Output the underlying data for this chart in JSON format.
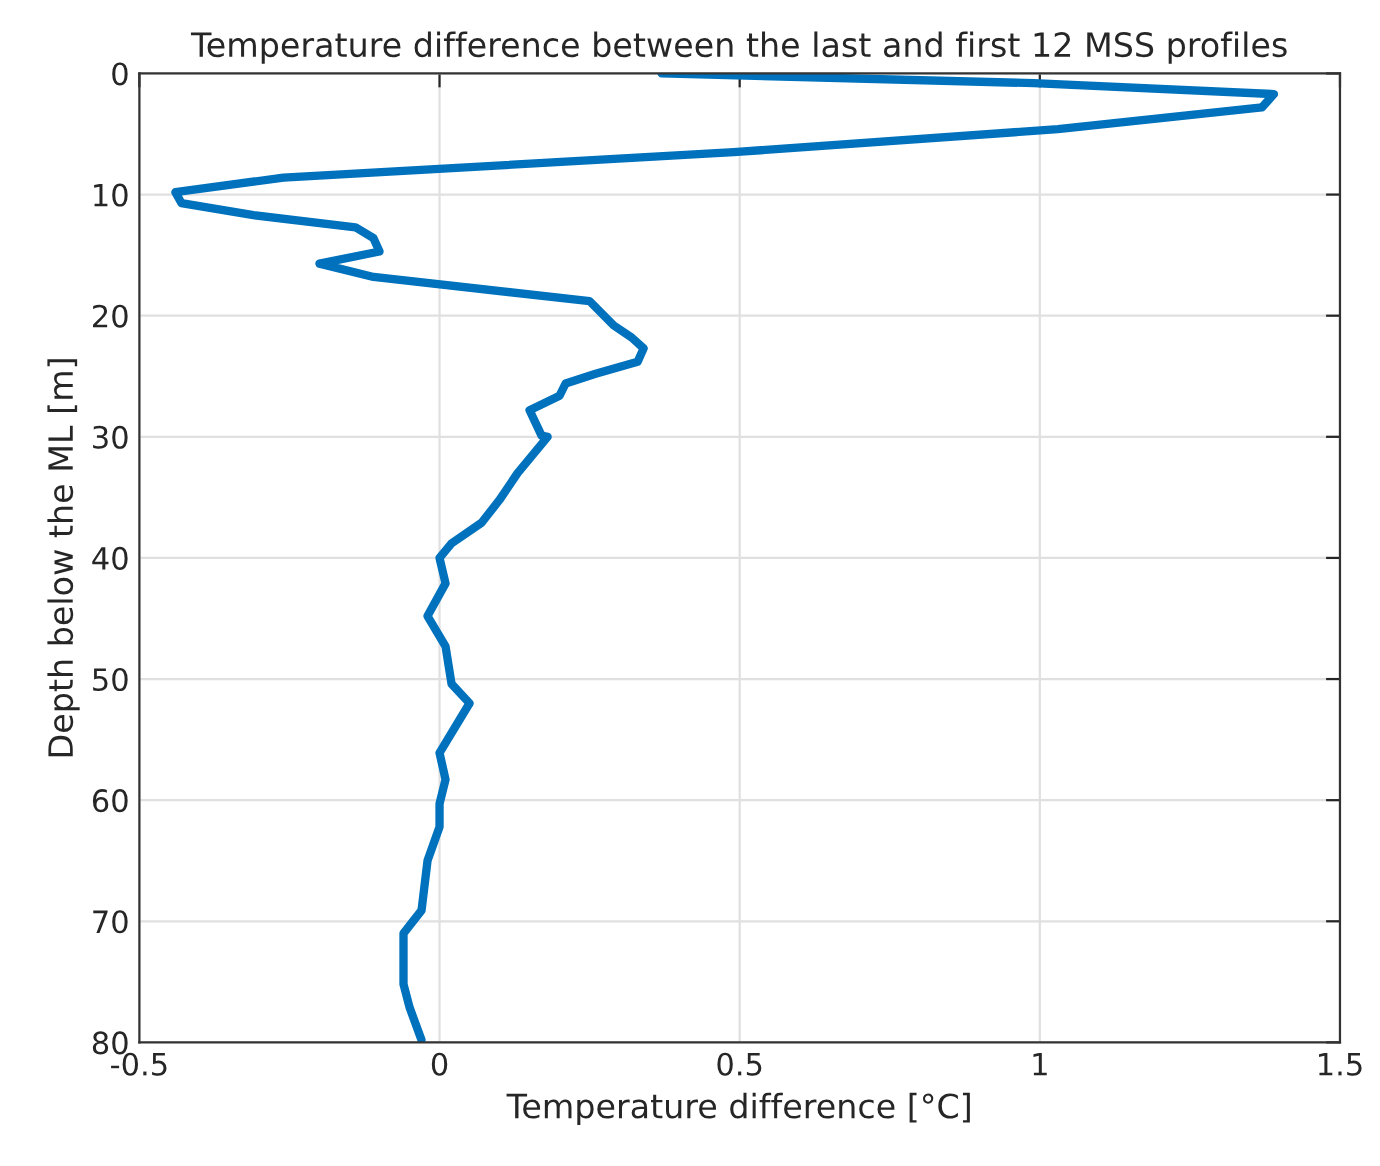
{
  "chart_data": {
    "type": "line",
    "title": "Temperature difference between the last and first 12 MSS profiles",
    "xlabel": "Temperature difference [°C]",
    "ylabel": "Depth below the ML [m]",
    "series": [
      {
        "color": "#0072bd",
        "x": [
          0.37,
          0.99,
          1.39,
          1.37,
          1.03,
          0.49,
          -0.26,
          -0.44,
          -0.43,
          -0.31,
          -0.14,
          -0.11,
          -0.1,
          -0.2,
          -0.11,
          0.25,
          0.29,
          0.32,
          0.34,
          0.33,
          0.26,
          0.21,
          0.2,
          0.15,
          0.17,
          0.18,
          0.13,
          0.1,
          0.07,
          0.02,
          0.0,
          0.01,
          -0.02,
          0.01,
          0.02,
          0.05,
          0.0,
          0.01,
          0.0,
          0.0,
          -0.02,
          -0.03,
          -0.06,
          -0.06,
          -0.05,
          -0.03
        ],
        "values": [
          0,
          0.8,
          1.7,
          2.8,
          4.6,
          6.5,
          8.6,
          9.8,
          10.7,
          11.7,
          12.7,
          13.6,
          14.7,
          15.7,
          16.8,
          18.8,
          20.8,
          21.8,
          22.7,
          23.8,
          24.8,
          25.6,
          26.6,
          27.8,
          29.9,
          30,
          33,
          35.2,
          37.1,
          38.8,
          40,
          42.1,
          44.8,
          47.3,
          50.4,
          52,
          56.1,
          58.3,
          60.3,
          62.2,
          65,
          69.1,
          71,
          75.2,
          77.1,
          79.8
        ]
      }
    ],
    "xlim": [
      -0.5,
      1.5
    ],
    "xticks": [
      -0.5,
      0,
      0.5,
      1,
      1.5
    ],
    "ylim": [
      80,
      0
    ],
    "yticks": [
      0,
      10,
      20,
      30,
      40,
      50,
      60,
      70,
      80
    ],
    "grid": true,
    "line_style": "solid"
  }
}
